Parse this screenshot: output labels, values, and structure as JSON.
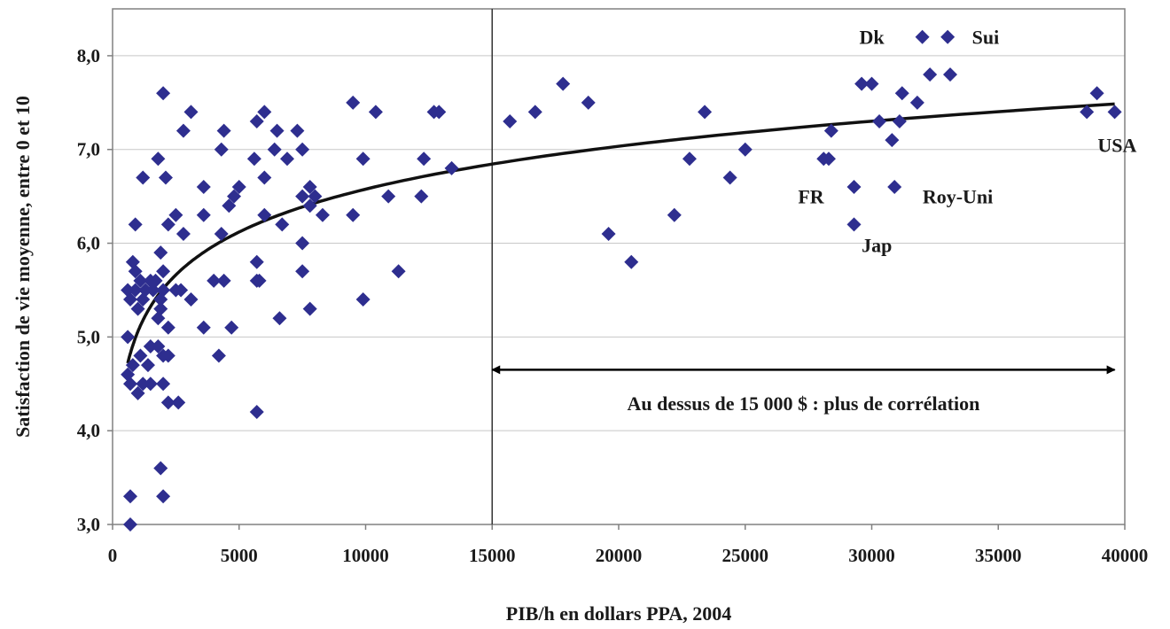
{
  "chart_data": {
    "type": "scatter",
    "xlabel": "PIB/h en dollars PPA, 2004",
    "ylabel": "Satisfaction de vie moyenne, entre 0 et 10",
    "xlim": [
      0,
      40000
    ],
    "ylim": [
      3.0,
      8.5
    ],
    "x_ticks": [
      "0",
      "5000",
      "10000",
      "15000",
      "20000",
      "25000",
      "30000",
      "35000",
      "40000"
    ],
    "x_tick_values": [
      0,
      5000,
      10000,
      15000,
      20000,
      25000,
      30000,
      35000,
      40000
    ],
    "y_ticks": [
      "3,0",
      "4,0",
      "5,0",
      "6,0",
      "7,0",
      "8,0"
    ],
    "y_tick_values": [
      3,
      4,
      5,
      6,
      7,
      8
    ],
    "grid": "horizontal",
    "marker_color": "#2e2e8f",
    "marker": "diamond",
    "points": [
      [
        700,
        3.0
      ],
      [
        700,
        3.3
      ],
      [
        2000,
        3.3
      ],
      [
        1900,
        3.6
      ],
      [
        5700,
        4.2
      ],
      [
        2200,
        4.3
      ],
      [
        2600,
        4.3
      ],
      [
        600,
        4.6
      ],
      [
        700,
        4.5
      ],
      [
        1000,
        4.4
      ],
      [
        1200,
        4.5
      ],
      [
        1500,
        4.5
      ],
      [
        2000,
        4.5
      ],
      [
        800,
        4.7
      ],
      [
        1100,
        4.8
      ],
      [
        1400,
        4.7
      ],
      [
        2000,
        4.8
      ],
      [
        2200,
        4.8
      ],
      [
        4200,
        4.8
      ],
      [
        1500,
        4.9
      ],
      [
        1800,
        4.9
      ],
      [
        600,
        5.0
      ],
      [
        4700,
        5.1
      ],
      [
        3600,
        5.1
      ],
      [
        2200,
        5.1
      ],
      [
        1800,
        5.2
      ],
      [
        1900,
        5.3
      ],
      [
        1000,
        5.3
      ],
      [
        700,
        5.4
      ],
      [
        1200,
        5.4
      ],
      [
        900,
        5.5
      ],
      [
        1100,
        5.6
      ],
      [
        1300,
        5.5
      ],
      [
        1500,
        5.6
      ],
      [
        1700,
        5.6
      ],
      [
        1900,
        5.4
      ],
      [
        2000,
        5.5
      ],
      [
        2500,
        5.5
      ],
      [
        2700,
        5.5
      ],
      [
        3100,
        5.4
      ],
      [
        600,
        5.5
      ],
      [
        800,
        5.8
      ],
      [
        900,
        5.7
      ],
      [
        1600,
        5.5
      ],
      [
        1900,
        5.9
      ],
      [
        2000,
        5.7
      ],
      [
        4000,
        5.6
      ],
      [
        4400,
        5.6
      ],
      [
        5700,
        5.6
      ],
      [
        5800,
        5.6
      ],
      [
        5700,
        5.8
      ],
      [
        6600,
        5.2
      ],
      [
        7800,
        5.3
      ],
      [
        9900,
        5.4
      ],
      [
        11300,
        5.7
      ],
      [
        7500,
        5.7
      ],
      [
        7500,
        6.0
      ],
      [
        900,
        6.2
      ],
      [
        2200,
        6.2
      ],
      [
        2500,
        6.3
      ],
      [
        2800,
        6.1
      ],
      [
        3600,
        6.3
      ],
      [
        4300,
        6.1
      ],
      [
        4600,
        6.4
      ],
      [
        4800,
        6.5
      ],
      [
        5000,
        6.6
      ],
      [
        6000,
        6.3
      ],
      [
        6700,
        6.2
      ],
      [
        7500,
        6.5
      ],
      [
        7800,
        6.4
      ],
      [
        8300,
        6.3
      ],
      [
        9500,
        6.3
      ],
      [
        10900,
        6.5
      ],
      [
        12200,
        6.5
      ],
      [
        1200,
        6.7
      ],
      [
        1800,
        6.9
      ],
      [
        2100,
        6.7
      ],
      [
        2800,
        7.2
      ],
      [
        3100,
        7.4
      ],
      [
        3600,
        6.6
      ],
      [
        4300,
        7.0
      ],
      [
        4400,
        7.2
      ],
      [
        5600,
        6.9
      ],
      [
        5700,
        7.3
      ],
      [
        6000,
        7.4
      ],
      [
        6000,
        6.7
      ],
      [
        6400,
        7.0
      ],
      [
        6500,
        7.2
      ],
      [
        6900,
        6.9
      ],
      [
        7300,
        7.2
      ],
      [
        7500,
        7.0
      ],
      [
        7800,
        6.6
      ],
      [
        8000,
        6.5
      ],
      [
        9500,
        7.5
      ],
      [
        9900,
        6.9
      ],
      [
        10400,
        7.4
      ],
      [
        12300,
        6.9
      ],
      [
        12700,
        7.4
      ],
      [
        12900,
        7.4
      ],
      [
        13400,
        6.8
      ],
      [
        2000,
        7.6
      ],
      [
        15700,
        7.3
      ],
      [
        16700,
        7.4
      ],
      [
        17800,
        7.7
      ],
      [
        18800,
        7.5
      ],
      [
        19600,
        6.1
      ],
      [
        20500,
        5.8
      ],
      [
        22200,
        6.3
      ],
      [
        22800,
        6.9
      ],
      [
        23400,
        7.4
      ],
      [
        24400,
        6.7
      ],
      [
        25000,
        7.0
      ],
      [
        28100,
        6.9
      ],
      [
        28300,
        6.9
      ],
      [
        28400,
        7.2
      ],
      [
        29300,
        6.2
      ],
      [
        29300,
        6.6
      ],
      [
        29600,
        7.7
      ],
      [
        30000,
        7.7
      ],
      [
        30300,
        7.3
      ],
      [
        30800,
        7.1
      ],
      [
        30900,
        6.6
      ],
      [
        31100,
        7.3
      ],
      [
        31200,
        7.6
      ],
      [
        31800,
        7.5
      ],
      [
        32000,
        8.2
      ],
      [
        32300,
        7.8
      ],
      [
        33000,
        8.2
      ],
      [
        33100,
        7.8
      ],
      [
        38500,
        7.4
      ],
      [
        38900,
        7.6
      ],
      [
        39600,
        7.4
      ]
    ],
    "trendline": {
      "type": "logarithmic",
      "x_range": [
        600,
        39600
      ]
    },
    "labels": [
      {
        "text": "Dk",
        "x": 30000,
        "y": 8.2
      },
      {
        "text": "Sui",
        "x": 34500,
        "y": 8.2
      },
      {
        "text": "USA",
        "x": 39700,
        "y": 7.05
      },
      {
        "text": "FR",
        "x": 27600,
        "y": 6.5
      },
      {
        "text": "Roy-Uni",
        "x": 33400,
        "y": 6.5
      },
      {
        "text": "Jap",
        "x": 30200,
        "y": 5.98
      }
    ],
    "vline_x": 15000,
    "arrow": {
      "x_start": 15000,
      "x_end": 39600,
      "y": 4.65
    },
    "annotation": {
      "text": "Au dessus de 15 000 $ : plus de corrélation",
      "x": 27300,
      "y": 4.22
    }
  }
}
